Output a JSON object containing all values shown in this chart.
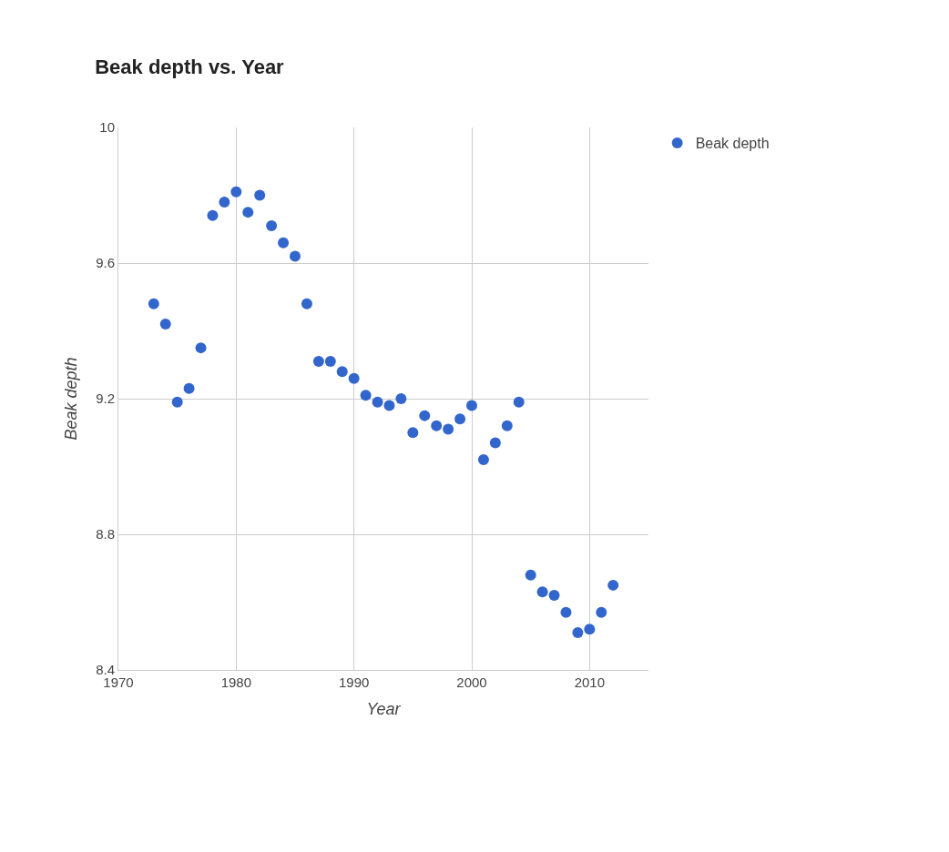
{
  "chart_data": {
    "type": "scatter",
    "title": "Beak depth vs. Year",
    "xlabel": "Year",
    "ylabel": "Beak depth",
    "x": [
      1973,
      1974,
      1975,
      1976,
      1977,
      1978,
      1979,
      1980,
      1981,
      1982,
      1983,
      1984,
      1985,
      1986,
      1987,
      1988,
      1989,
      1990,
      1991,
      1992,
      1993,
      1994,
      1995,
      1996,
      1997,
      1998,
      1999,
      2000,
      2001,
      2002,
      2003,
      2004,
      2005,
      2006,
      2007,
      2008,
      2009,
      2010,
      2011,
      2012
    ],
    "series": [
      {
        "name": "Beak depth",
        "color": "#3366cc",
        "values": [
          9.48,
          9.42,
          9.19,
          9.23,
          9.35,
          9.74,
          9.78,
          9.81,
          9.75,
          9.8,
          9.71,
          9.66,
          9.62,
          9.48,
          9.31,
          9.31,
          9.28,
          9.26,
          9.21,
          9.19,
          9.18,
          9.2,
          9.1,
          9.15,
          9.12,
          9.11,
          9.14,
          9.18,
          9.02,
          9.07,
          9.12,
          9.19,
          8.68,
          8.63,
          8.62,
          8.57,
          8.51,
          8.52,
          8.57,
          8.65
        ]
      }
    ],
    "xlim": [
      1970,
      2015
    ],
    "xticks": [
      1970,
      1980,
      1990,
      2000,
      2010
    ],
    "ylim": [
      8.4,
      10
    ],
    "yticks": [
      8.4,
      8.8,
      9.2,
      9.6,
      10
    ],
    "grid": true,
    "legend": "top right",
    "marker": "circle"
  }
}
